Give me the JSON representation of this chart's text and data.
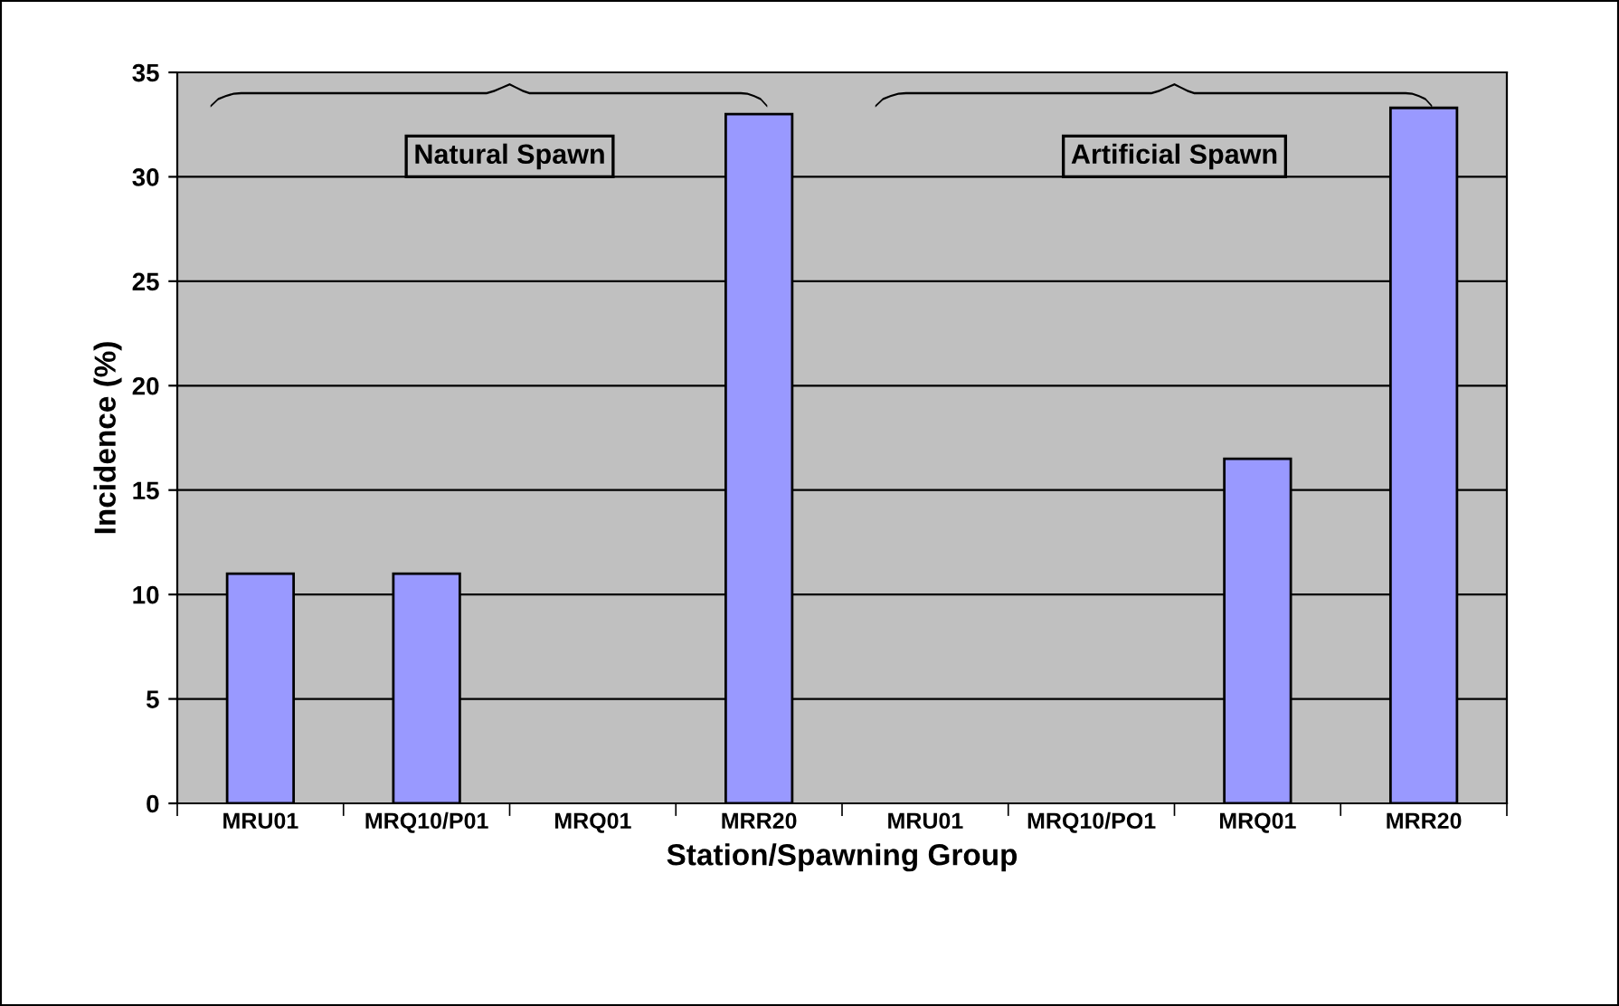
{
  "chart_data": {
    "type": "bar",
    "xlabel": "Station/Spawning Group",
    "ylabel": "Incidence (%)",
    "categories": [
      "MRU01",
      "MRQ10/P01",
      "MRQ01",
      "MRR20",
      "MRU01",
      "MRQ10/PO1",
      "MRQ01",
      "MRR20"
    ],
    "values": [
      11,
      11,
      0,
      33,
      0,
      0,
      16.5,
      33.3
    ],
    "color": "#9999ff",
    "ylim": [
      0,
      35
    ],
    "yticks": [
      0,
      5,
      10,
      15,
      20,
      25,
      30,
      35
    ],
    "grid": "y",
    "annotations": [
      "Natural Spawn",
      "Artificial Spawn"
    ]
  }
}
